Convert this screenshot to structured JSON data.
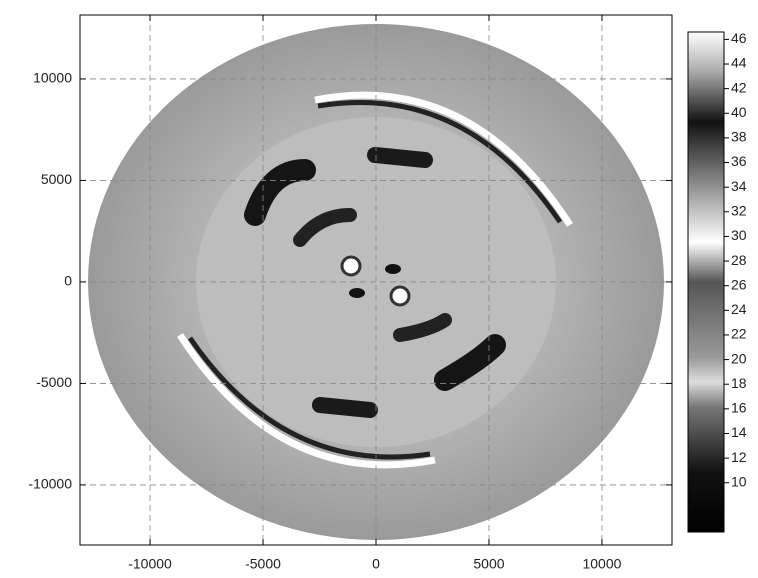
{
  "chart_data": {
    "type": "heatmap",
    "xlim": [
      -13100,
      13100
    ],
    "xticks": [
      -10000,
      -5000,
      0,
      5000,
      10000
    ],
    "ylim": [
      -12960,
      13150
    ],
    "yticks": [
      -10000,
      -5000,
      0,
      5000,
      10000
    ],
    "grid": true,
    "colorbar": {
      "lim": [
        6,
        46.6
      ],
      "ticks": [
        10,
        12,
        14,
        16,
        18,
        20,
        22,
        24,
        26,
        28,
        30,
        32,
        34,
        36,
        38,
        40,
        42,
        44,
        46
      ]
    }
  }
}
